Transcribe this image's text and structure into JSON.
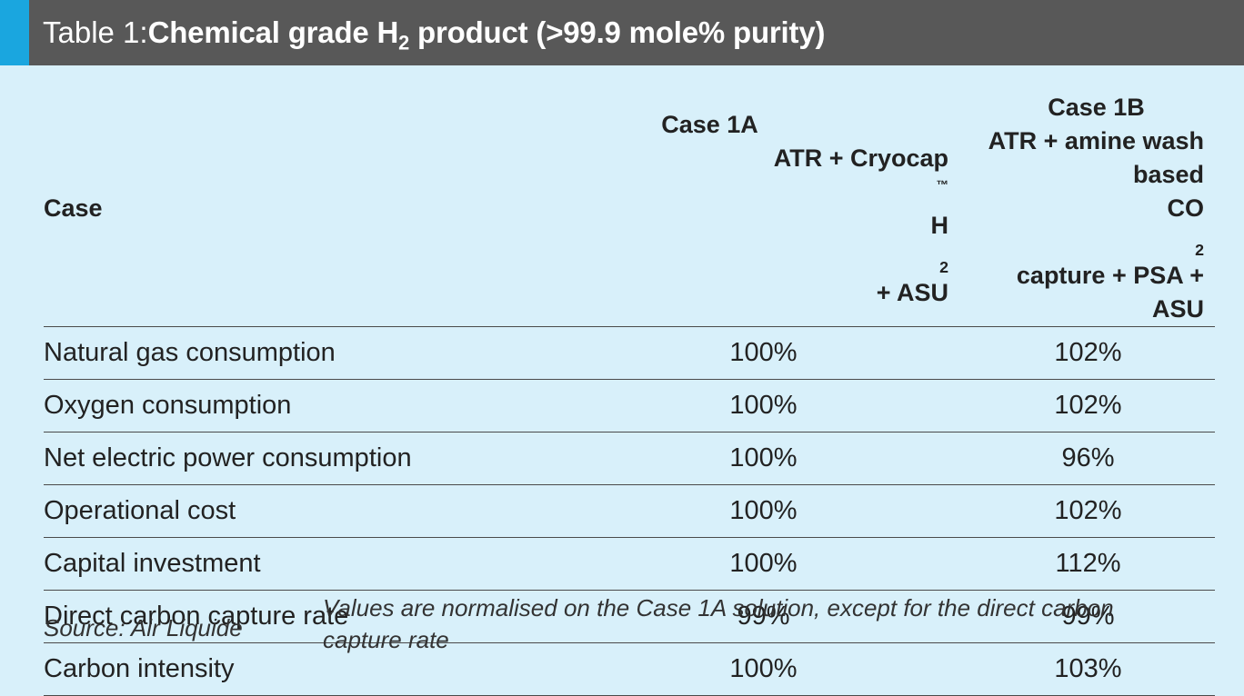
{
  "title": {
    "prefix": "Table 1: ",
    "main_before_sub": "Chemical grade H",
    "main_sub": "2",
    "main_after_sub": " product (>99.9 mole% purity)"
  },
  "table": {
    "header": {
      "label": "Case",
      "case_a_line1": "Case 1A",
      "case_a_line2_before": "ATR + Cryocap",
      "case_a_tm": "™",
      "case_a_line2_mid": " H",
      "case_a_line2_sub": "2",
      "case_a_line2_after": " + ASU",
      "case_b_line1": "Case 1B",
      "case_b_line2": "ATR + amine wash based",
      "case_b_line3_before": "CO",
      "case_b_line3_sub": "2",
      "case_b_line3_after": " capture + PSA + ASU"
    },
    "rows": [
      {
        "label": "Natural gas consumption",
        "case_a": "100%",
        "case_b": "102%"
      },
      {
        "label": "Oxygen consumption",
        "case_a": "100%",
        "case_b": "102%"
      },
      {
        "label": "Net electric power consumption",
        "case_a": "100%",
        "case_b": "96%"
      },
      {
        "label": "Operational cost",
        "case_a": "100%",
        "case_b": "102%"
      },
      {
        "label": "Capital investment",
        "case_a": "100%",
        "case_b": "112%"
      },
      {
        "label": "Direct carbon capture rate",
        "case_a": "99%",
        "case_b": "99%"
      },
      {
        "label": "Carbon intensity",
        "case_a": "100%",
        "case_b": "103%"
      }
    ]
  },
  "footer": {
    "source": "Source: Air Liquide",
    "note": "Values are normalised on the Case 1A solution, except for the direct carbon capture rate"
  },
  "colors": {
    "background": "#d8f0fa",
    "title_bar": "#585858",
    "accent": "#1aa6df"
  }
}
